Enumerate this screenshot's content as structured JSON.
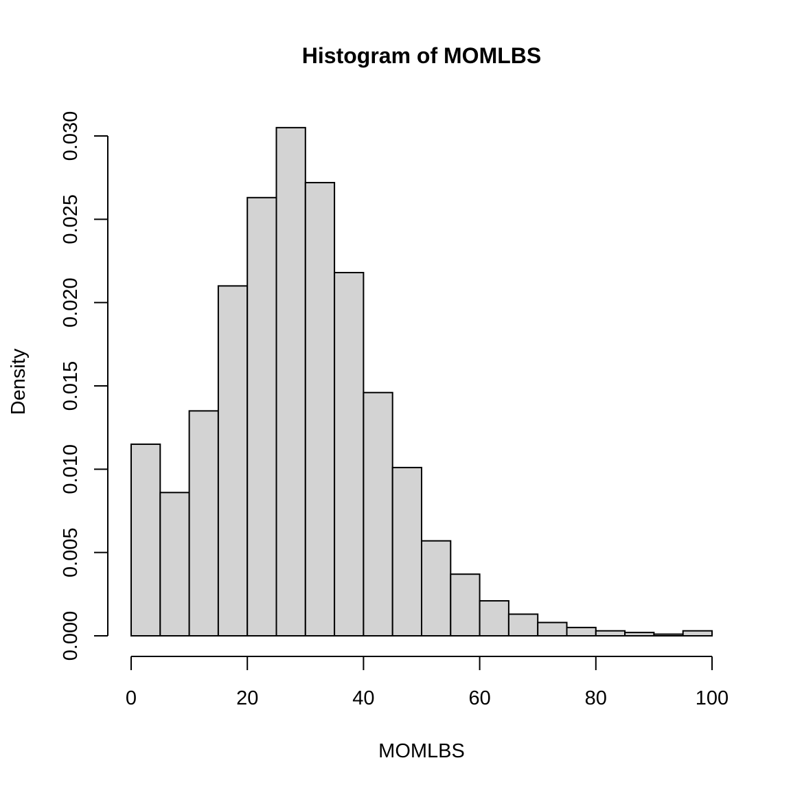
{
  "chart_data": {
    "type": "bar",
    "title": "Histogram of MOMLBS",
    "xlabel": "MOMLBS",
    "ylabel": "Density",
    "bin_edges": [
      0,
      5,
      10,
      15,
      20,
      25,
      30,
      35,
      40,
      45,
      50,
      55,
      60,
      65,
      70,
      75,
      80,
      85,
      90,
      95,
      100
    ],
    "values": [
      0.0115,
      0.0086,
      0.0135,
      0.021,
      0.0263,
      0.0305,
      0.0272,
      0.0218,
      0.0146,
      0.0101,
      0.0057,
      0.0037,
      0.0021,
      0.0013,
      0.0008,
      0.0005,
      0.0003,
      0.0002,
      0.0001,
      0.0003
    ],
    "xlim": [
      0,
      100
    ],
    "ylim": [
      0,
      0.03
    ],
    "xticks": [
      "0",
      "20",
      "40",
      "60",
      "80",
      "100"
    ],
    "xtick_values": [
      0,
      20,
      40,
      60,
      80,
      100
    ],
    "yticks": [
      "0.000",
      "0.005",
      "0.010",
      "0.015",
      "0.020",
      "0.025",
      "0.030"
    ],
    "ytick_values": [
      0,
      0.005,
      0.01,
      0.015,
      0.02,
      0.025,
      0.03
    ],
    "grid": false,
    "bar_color": "#d3d3d3",
    "edge_color": "#000000"
  }
}
